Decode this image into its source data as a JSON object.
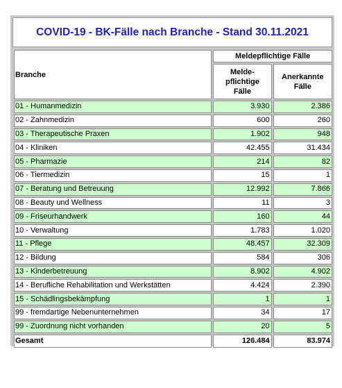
{
  "title": "COVID-19 - BK-Fälle nach Branche - Stand 30.11.2021",
  "headers": {
    "branche": "Branche",
    "group": "Meldepflichtige Fälle",
    "col1": "Melde-\npflichtige\nFälle",
    "col2": "Anerkannte\nFälle"
  },
  "rows": [
    {
      "name": "01 - Humanmedizin",
      "melde": "3.930",
      "anerk": "2.386"
    },
    {
      "name": "02 - Zahnmedizin",
      "melde": "600",
      "anerk": "260"
    },
    {
      "name": "03 - Therapeutische Praxen",
      "melde": "1.902",
      "anerk": "948"
    },
    {
      "name": "04 - Kliniken",
      "melde": "42.455",
      "anerk": "31.434"
    },
    {
      "name": "05 - Pharmazie",
      "melde": "214",
      "anerk": "82"
    },
    {
      "name": "06 - Tiermedizin",
      "melde": "15",
      "anerk": "1"
    },
    {
      "name": "07 - Beratung und Betreuung",
      "melde": "12.992",
      "anerk": "7.866"
    },
    {
      "name": "08 - Beauty und Wellness",
      "melde": "11",
      "anerk": "3"
    },
    {
      "name": "09 - Friseurhandwerk",
      "melde": "160",
      "anerk": "44"
    },
    {
      "name": "10 - Verwaltung",
      "melde": "1.783",
      "anerk": "1.020"
    },
    {
      "name": "11 - Pflege",
      "melde": "48.457",
      "anerk": "32.309"
    },
    {
      "name": "12 - Bildung",
      "melde": "584",
      "anerk": "306"
    },
    {
      "name": "13 - Kinderbetreuung",
      "melde": "8.902",
      "anerk": "4.902"
    },
    {
      "name": "14 - Berufliche Rehabilitation und Werkstätten",
      "melde": "4.424",
      "anerk": "2.390"
    },
    {
      "name": "15 - Schädlingsbekämpfung",
      "melde": "1",
      "anerk": "1"
    },
    {
      "name": "99 - fremdartige Nebenunternehmen",
      "melde": "34",
      "anerk": "17"
    },
    {
      "name": "99 - Zuordnung nicht vorhanden",
      "melde": "20",
      "anerk": "5"
    }
  ],
  "total": {
    "name": "Gesamt",
    "melde": "126.484",
    "anerk": "83.974"
  },
  "colors": {
    "title": "#1f1fbf",
    "green_row": "#ccffcc",
    "frame": "#c8c8c8"
  }
}
